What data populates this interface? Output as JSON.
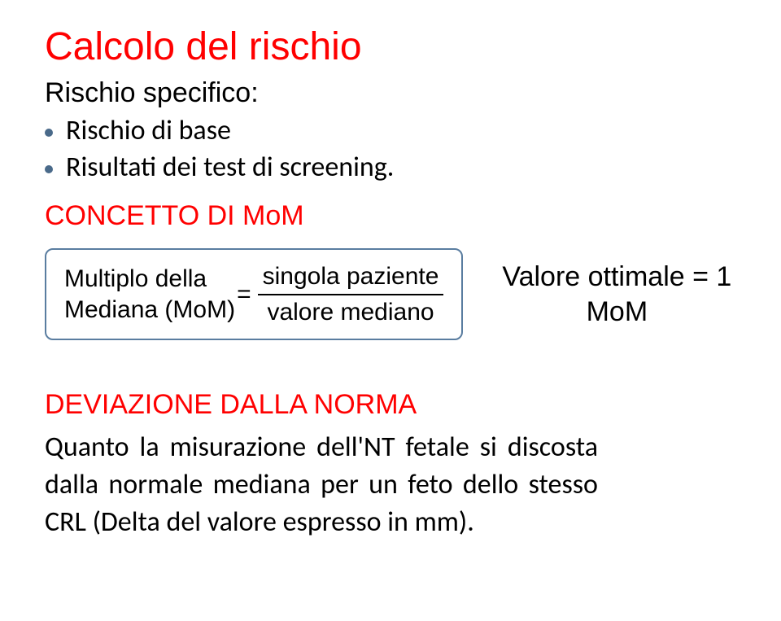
{
  "title": "Calcolo del rischio",
  "subtitle": "Rischio specifico:",
  "bullets": [
    "Rischio di base",
    "Risultati dei test di screening."
  ],
  "concetto_label": "CONCETTO DI MoM",
  "formula": {
    "left_line1": "Multiplo della",
    "left_line2": "Mediana (MoM)",
    "equals": "=",
    "numerator": "singola paziente",
    "denominator": "valore mediano"
  },
  "valore_line1": "Valore ottimale = 1",
  "valore_line2": "MoM",
  "deviazione_label": "DEVIAZIONE DALLA NORMA",
  "body": "Quanto la misurazione dell'NT fetale si discosta dalla normale mediana per un feto dello stesso CRL (Delta del valore espresso in mm).",
  "colors": {
    "title_color": "#ff0000",
    "accent_box_border": "#5a7da0",
    "bullet_color": "#4a6a8a",
    "text_color": "#000000",
    "background": "#ffffff"
  },
  "fonts": {
    "title_family": "Gill Sans",
    "body_family": "Calibri",
    "title_size_pt": 36,
    "heading_size_pt": 26,
    "body_size_pt": 26,
    "formula_size_pt": 22
  }
}
